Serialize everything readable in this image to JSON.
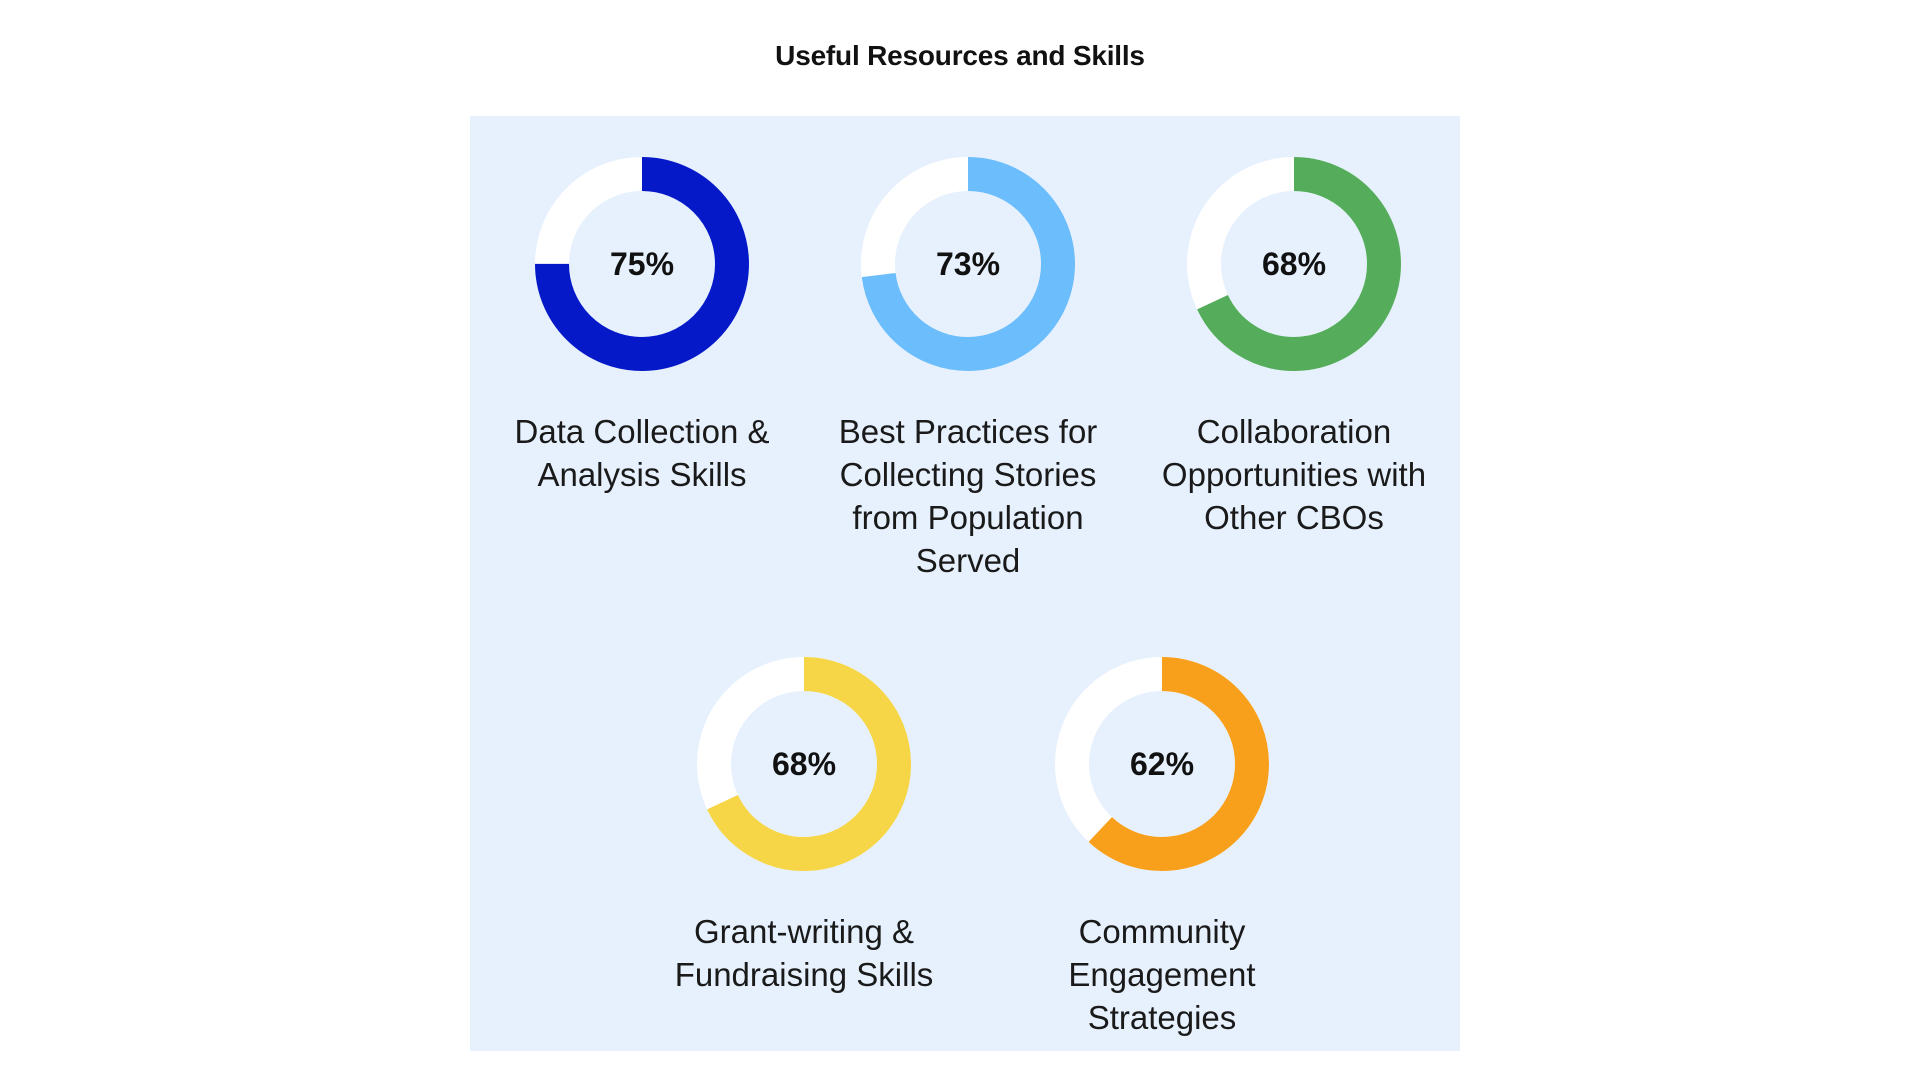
{
  "chart_data": {
    "type": "pie",
    "title": "Useful Resources and Skills",
    "items": [
      {
        "label": "Data Collection & Analysis Skills",
        "value": 75,
        "value_label": "75%",
        "color": "#0519c9"
      },
      {
        "label": "Best Practices for Collecting Stories from Population Served",
        "value": 73,
        "value_label": "73%",
        "color": "#6bbdfc"
      },
      {
        "label": "Collaboration Opportunities with Other CBOs",
        "value": 68,
        "value_label": "68%",
        "color": "#55ad5c"
      },
      {
        "label": "Grant-writing & Fundraising Skills",
        "value": 68,
        "value_label": "68%",
        "color": "#f6d547"
      },
      {
        "label": "Community Engagement Strategies",
        "value": 62,
        "value_label": "62%",
        "color": "#f8a01b"
      }
    ],
    "track_color": "#ffffff",
    "panel_color": "#e6f1fd"
  }
}
